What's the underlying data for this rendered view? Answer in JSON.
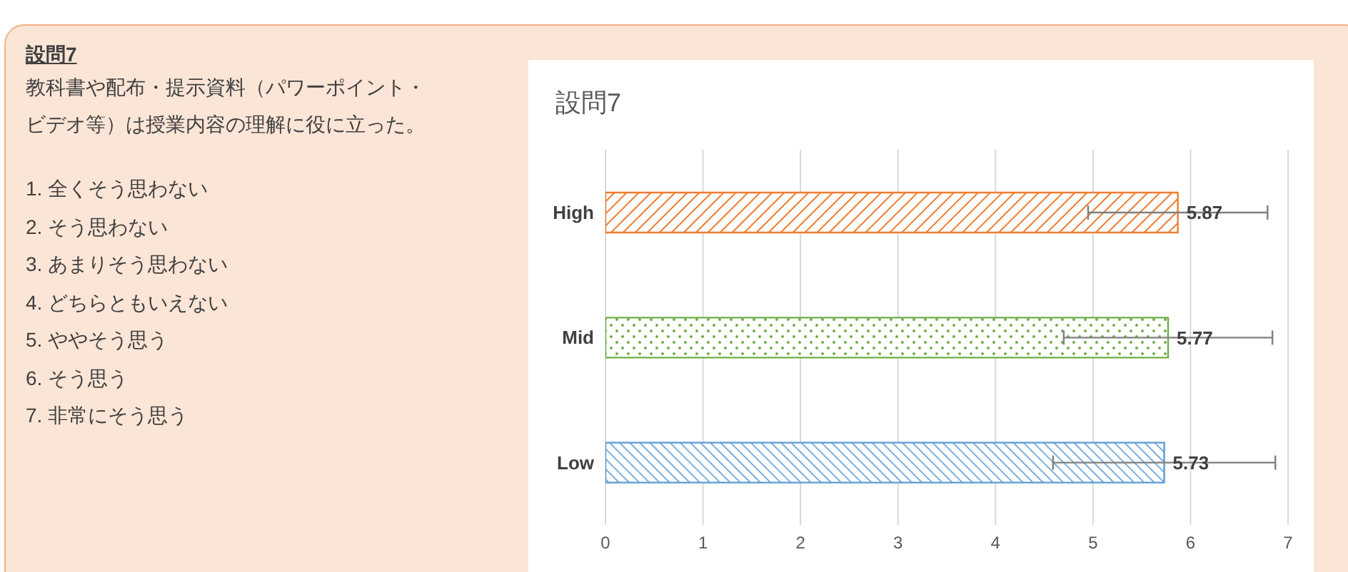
{
  "chart_data": {
    "type": "bar",
    "orientation": "horizontal",
    "title": "設問7",
    "categories": [
      "High",
      "Mid",
      "Low"
    ],
    "values": [
      5.87,
      5.77,
      5.73
    ],
    "errors": [
      0.92,
      1.07,
      1.14
    ],
    "colors": [
      "#ed7d31",
      "#70ad47",
      "#5b9bd5"
    ],
    "xlim": [
      0,
      7
    ],
    "xticks": [
      0,
      1,
      2,
      3,
      4,
      5,
      6,
      7
    ],
    "grid": "x",
    "legend": false,
    "data_labels": true,
    "annotations": [
      "設問7",
      "教科書や配布・提示資料（パワーポイント・",
      "ビデオ等）は授業内容の理解に役に立った。",
      "1. 全くそう思わない",
      "2. そう思わない",
      "3. あまりそう思わない",
      "4. どちらともいえない",
      "5. ややそう思う",
      "6. そう思う",
      "7. 非常にそう思う"
    ]
  }
}
